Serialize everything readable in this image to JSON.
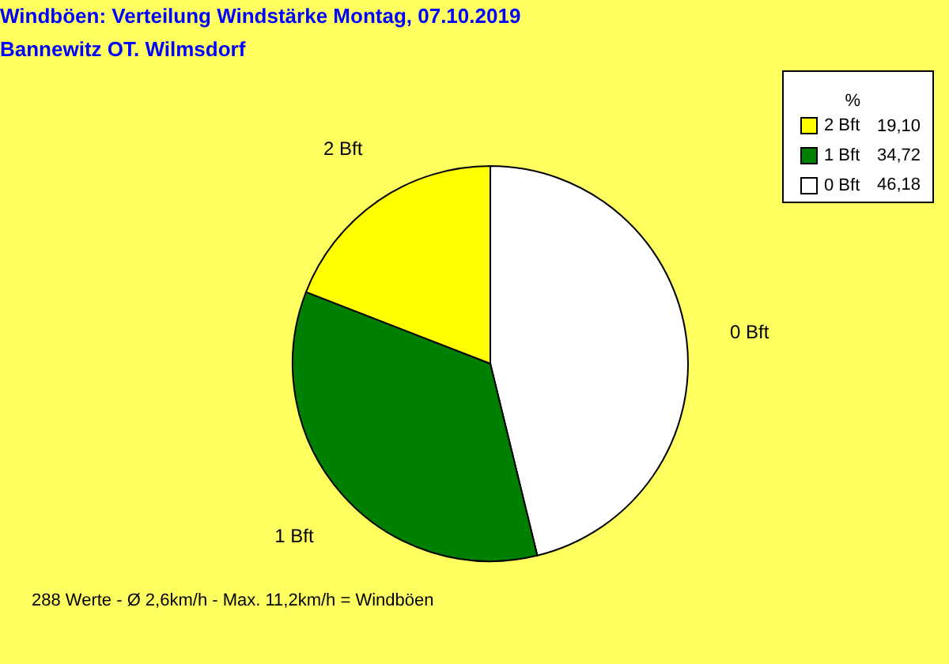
{
  "chart_data": {
    "type": "pie",
    "title": "Windböen: Verteilung Windstärke  Montag, 07.10.2019",
    "subtitle": "Bannewitz OT. Wilmsdorf",
    "categories": [
      "0 Bft",
      "1 Bft",
      "2 Bft"
    ],
    "values": [
      46.18,
      34.72,
      19.1
    ],
    "value_labels": [
      "46,18",
      "34,72",
      "19,10"
    ],
    "colors": [
      "#ffffff",
      "#008000",
      "#ffff00"
    ],
    "legend_title": "%",
    "legend": "top right",
    "annotations": [
      "288 Werte   -   Ø 2,6km/h  -  Max. 11,2km/h = Windböen"
    ]
  }
}
